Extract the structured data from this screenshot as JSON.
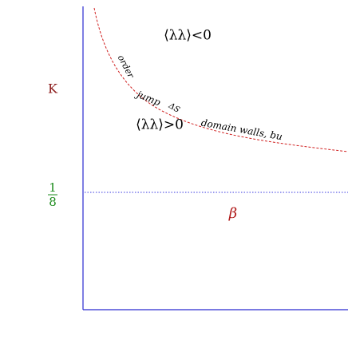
{
  "axes": {
    "y_label": "K",
    "x_label": "β",
    "y_marker": {
      "numerator": "1",
      "denominator": "8"
    }
  },
  "regions": {
    "upper": "⟨λλ⟩<0",
    "lower": "⟨λλ⟩>0"
  },
  "curve_labels": {
    "order": "order",
    "jump": "jump",
    "delta_s": "ΔS",
    "domain_walls": "domain walls, bu"
  }
}
